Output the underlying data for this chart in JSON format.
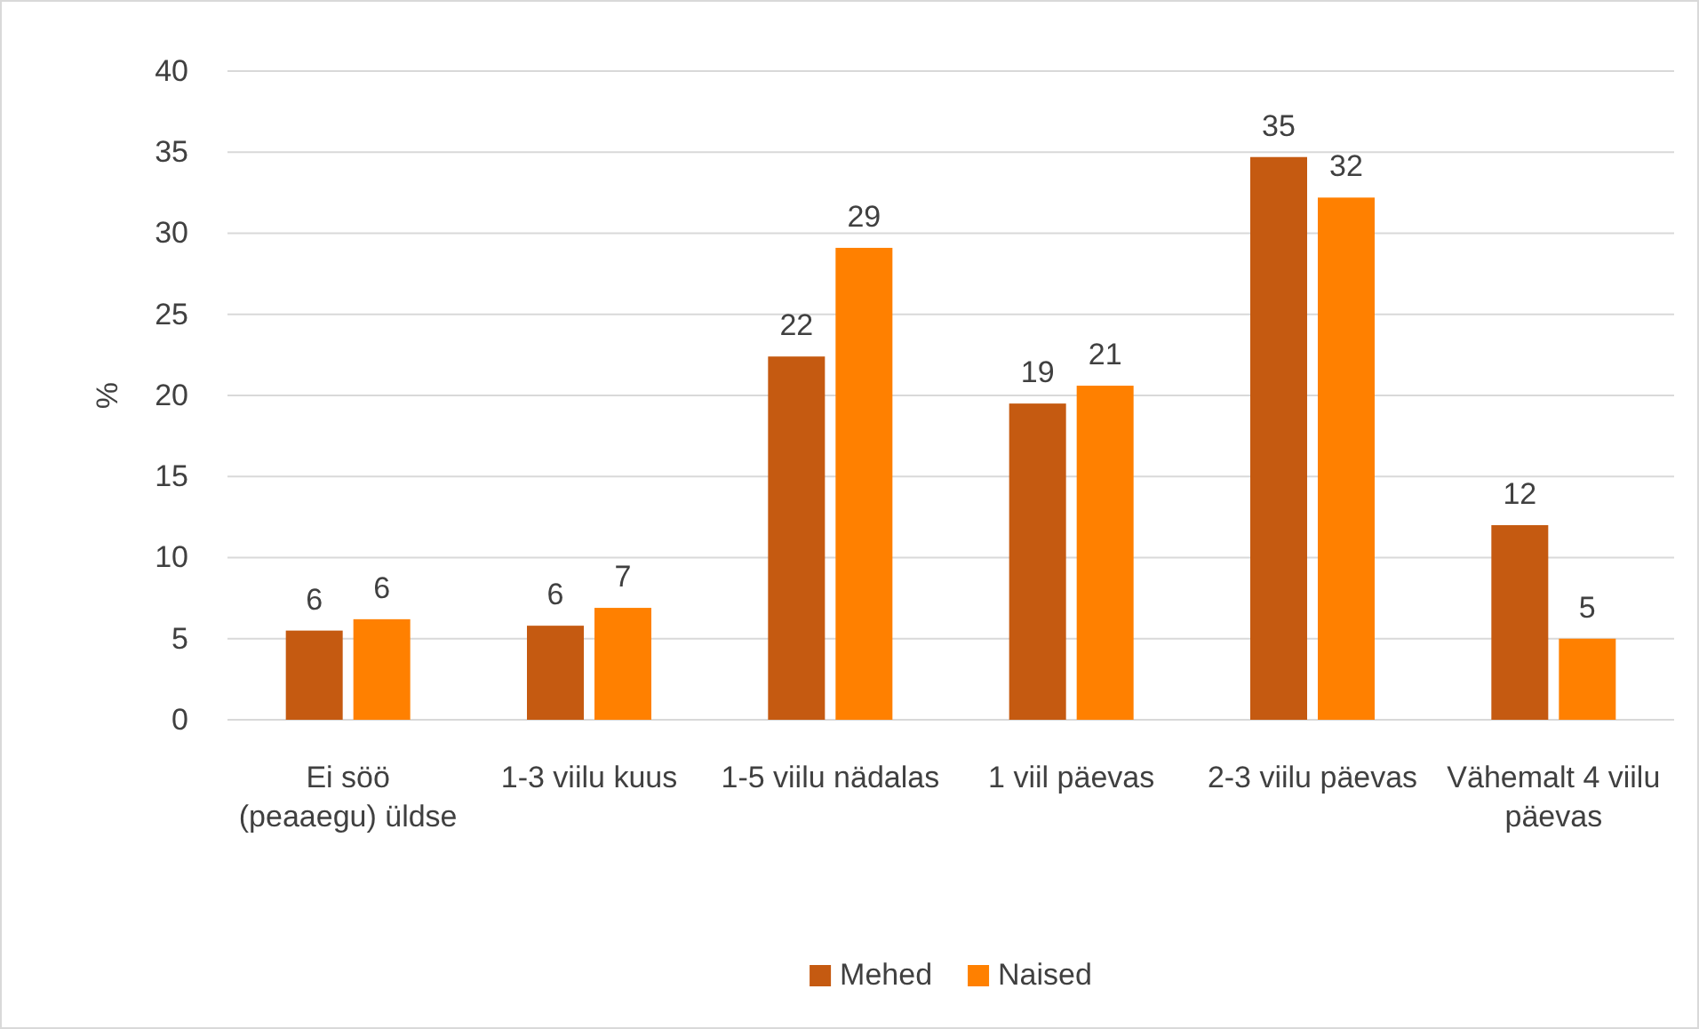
{
  "chart_data": {
    "type": "bar",
    "ylabel": "%",
    "categories": [
      "Ei söö (peaaegu) üldse",
      "1-3 viilu kuus",
      "1-5 viilu nädalas",
      "1 viil päevas",
      "2-3 viilu päevas",
      "Vähemalt 4 viilu päevas"
    ],
    "series": [
      {
        "name": "Mehed",
        "color": "#c55a11",
        "values": [
          5.5,
          5.8,
          22.4,
          19.5,
          34.7,
          12.0
        ],
        "value_labels": [
          "6",
          "6",
          "22",
          "19",
          "35",
          "12"
        ]
      },
      {
        "name": "Naised",
        "color": "#ff8000",
        "values": [
          6.2,
          6.9,
          29.1,
          20.6,
          32.2,
          5.0
        ],
        "value_labels": [
          "6",
          "7",
          "29",
          "21",
          "32",
          "5"
        ]
      }
    ],
    "ylim": [
      0,
      40
    ],
    "yticks": [
      0,
      5,
      10,
      15,
      20,
      25,
      30,
      35,
      40
    ],
    "grid": "y",
    "legend": "bottom"
  }
}
